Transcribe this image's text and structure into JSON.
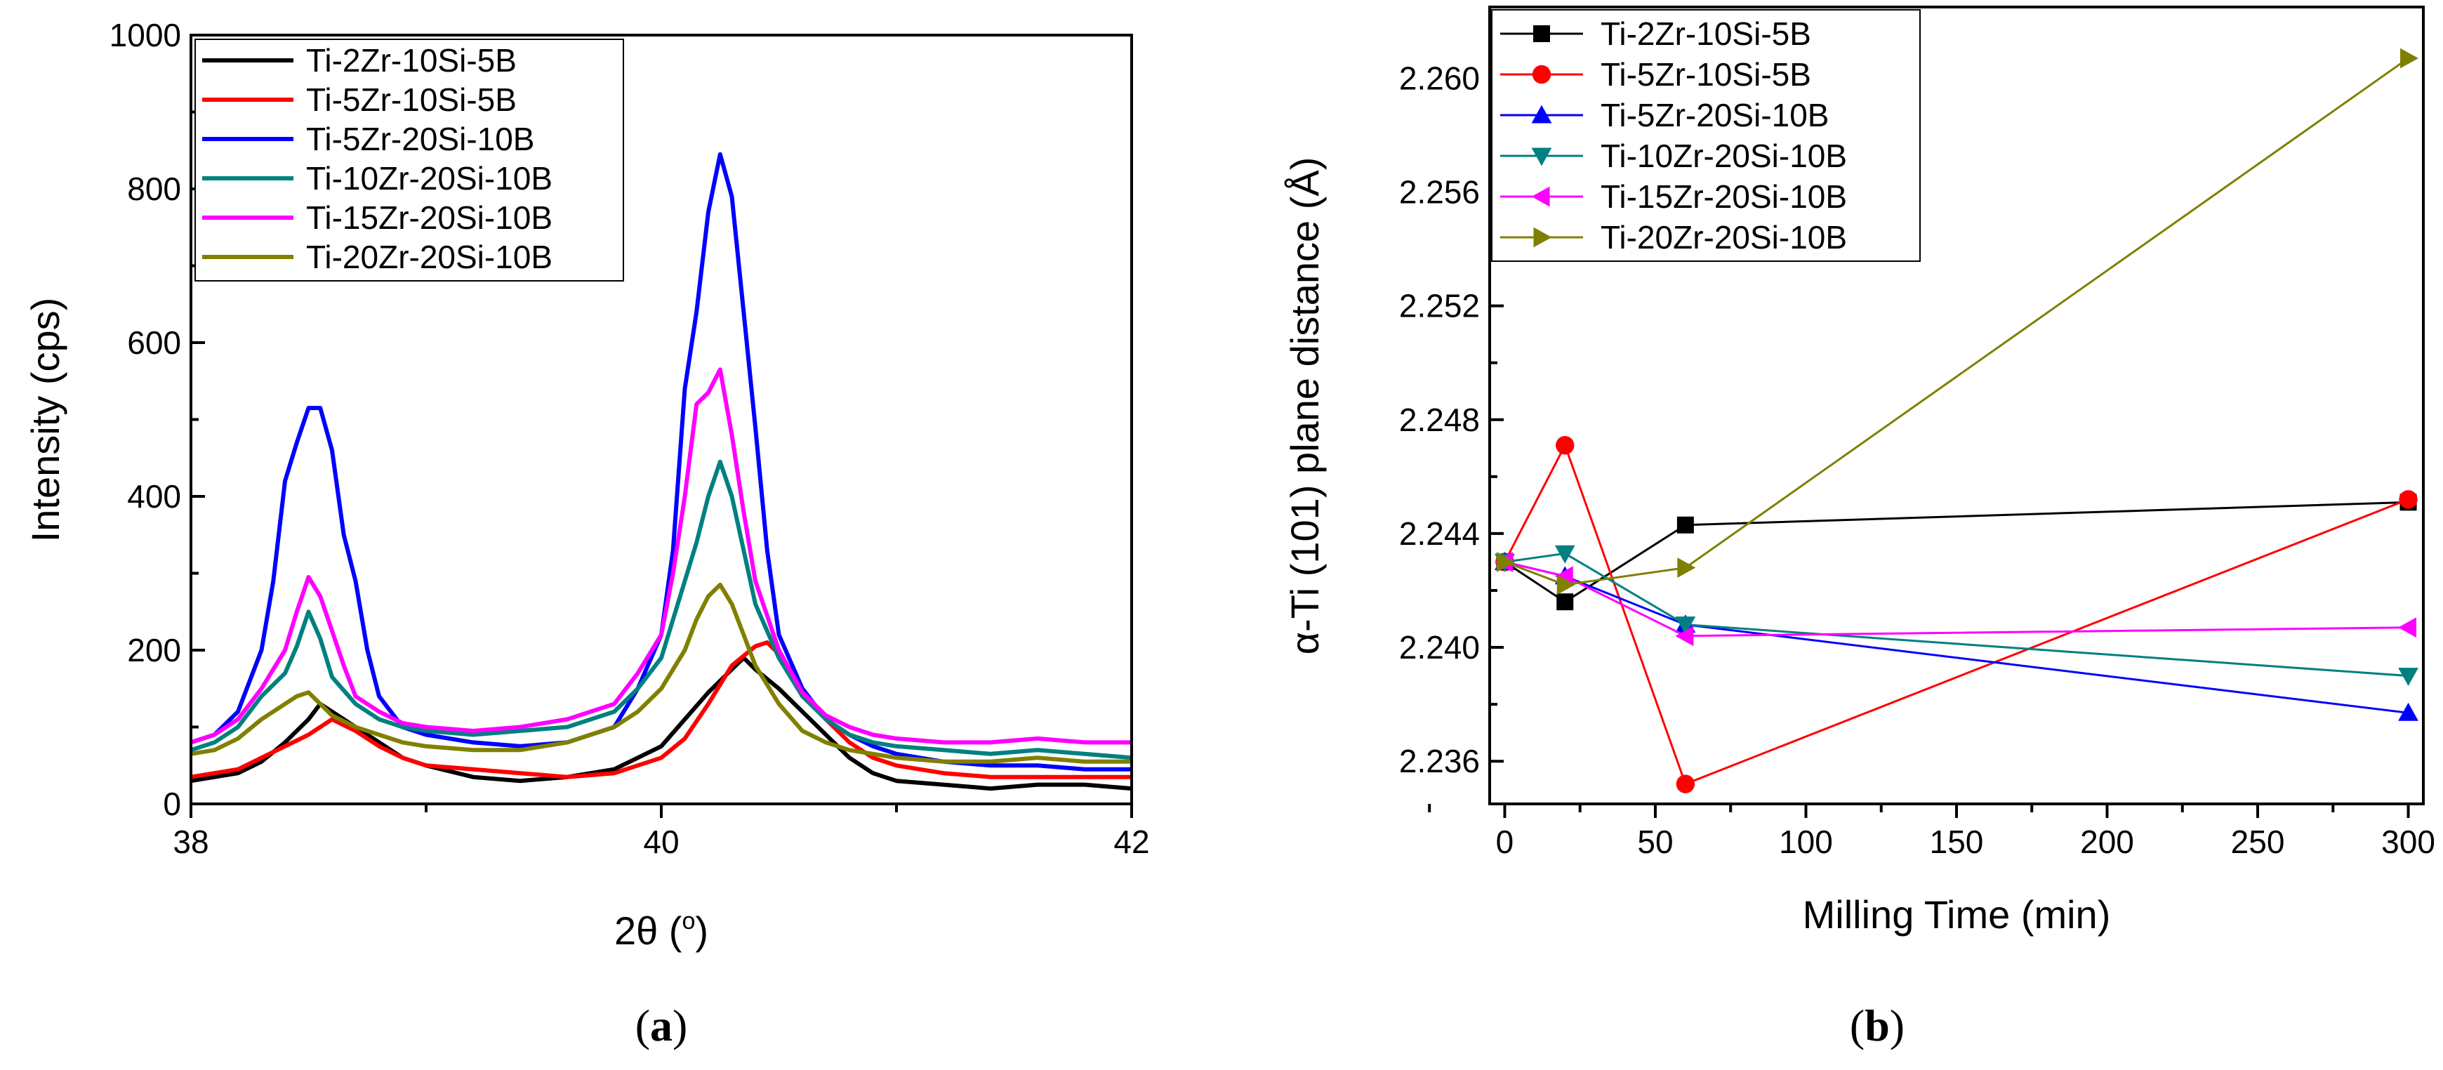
{
  "chart_data": [
    {
      "panel_label": {
        "open": "(",
        "letter": "a",
        "close": ")"
      },
      "type": "line",
      "xlabel_main": "2θ (",
      "xlabel_sup": "o",
      "xlabel_end": ")",
      "ylabel": "Intensity (cps)",
      "xlim": [
        38,
        42
      ],
      "ylim": [
        0,
        1000
      ],
      "xticks": [
        38,
        40,
        42
      ],
      "yticks": [
        0,
        200,
        400,
        600,
        800,
        1000
      ],
      "legend_position": "top-left",
      "series": [
        {
          "name": "Ti-2Zr-10Si-5B",
          "color": "#000000",
          "points": [
            [
              38.0,
              30
            ],
            [
              38.1,
              35
            ],
            [
              38.2,
              40
            ],
            [
              38.3,
              55
            ],
            [
              38.4,
              80
            ],
            [
              38.5,
              110
            ],
            [
              38.55,
              130
            ],
            [
              38.6,
              120
            ],
            [
              38.7,
              100
            ],
            [
              38.8,
              80
            ],
            [
              38.9,
              60
            ],
            [
              39.0,
              50
            ],
            [
              39.2,
              35
            ],
            [
              39.4,
              30
            ],
            [
              39.6,
              35
            ],
            [
              39.8,
              45
            ],
            [
              39.9,
              60
            ],
            [
              40.0,
              75
            ],
            [
              40.1,
              110
            ],
            [
              40.2,
              145
            ],
            [
              40.3,
              175
            ],
            [
              40.35,
              190
            ],
            [
              40.4,
              175
            ],
            [
              40.5,
              150
            ],
            [
              40.6,
              120
            ],
            [
              40.7,
              90
            ],
            [
              40.8,
              60
            ],
            [
              40.9,
              40
            ],
            [
              41.0,
              30
            ],
            [
              41.2,
              25
            ],
            [
              41.4,
              20
            ],
            [
              41.6,
              25
            ],
            [
              41.8,
              25
            ],
            [
              42.0,
              20
            ]
          ]
        },
        {
          "name": "Ti-5Zr-10Si-5B",
          "color": "#ff0000",
          "points": [
            [
              38.0,
              35
            ],
            [
              38.1,
              40
            ],
            [
              38.2,
              45
            ],
            [
              38.3,
              60
            ],
            [
              38.4,
              75
            ],
            [
              38.5,
              90
            ],
            [
              38.55,
              100
            ],
            [
              38.6,
              110
            ],
            [
              38.7,
              95
            ],
            [
              38.8,
              75
            ],
            [
              38.9,
              60
            ],
            [
              39.0,
              50
            ],
            [
              39.2,
              45
            ],
            [
              39.4,
              40
            ],
            [
              39.6,
              35
            ],
            [
              39.8,
              40
            ],
            [
              40.0,
              60
            ],
            [
              40.1,
              85
            ],
            [
              40.2,
              130
            ],
            [
              40.3,
              180
            ],
            [
              40.4,
              205
            ],
            [
              40.45,
              210
            ],
            [
              40.5,
              195
            ],
            [
              40.6,
              150
            ],
            [
              40.7,
              110
            ],
            [
              40.8,
              80
            ],
            [
              40.9,
              60
            ],
            [
              41.0,
              50
            ],
            [
              41.2,
              40
            ],
            [
              41.4,
              35
            ],
            [
              41.6,
              35
            ],
            [
              41.8,
              35
            ],
            [
              42.0,
              35
            ]
          ]
        },
        {
          "name": "Ti-5Zr-20Si-10B",
          "color": "#0000ff",
          "points": [
            [
              38.0,
              80
            ],
            [
              38.1,
              90
            ],
            [
              38.2,
              120
            ],
            [
              38.3,
              200
            ],
            [
              38.35,
              290
            ],
            [
              38.4,
              420
            ],
            [
              38.45,
              470
            ],
            [
              38.5,
              515
            ],
            [
              38.55,
              515
            ],
            [
              38.6,
              460
            ],
            [
              38.65,
              350
            ],
            [
              38.7,
              290
            ],
            [
              38.75,
              200
            ],
            [
              38.8,
              140
            ],
            [
              38.9,
              100
            ],
            [
              39.0,
              90
            ],
            [
              39.2,
              80
            ],
            [
              39.4,
              75
            ],
            [
              39.6,
              80
            ],
            [
              39.8,
              100
            ],
            [
              39.9,
              150
            ],
            [
              40.0,
              220
            ],
            [
              40.05,
              330
            ],
            [
              40.1,
              540
            ],
            [
              40.15,
              640
            ],
            [
              40.2,
              770
            ],
            [
              40.25,
              845
            ],
            [
              40.3,
              790
            ],
            [
              40.35,
              640
            ],
            [
              40.4,
              490
            ],
            [
              40.45,
              330
            ],
            [
              40.5,
              220
            ],
            [
              40.6,
              150
            ],
            [
              40.7,
              110
            ],
            [
              40.8,
              90
            ],
            [
              40.9,
              75
            ],
            [
              41.0,
              65
            ],
            [
              41.2,
              55
            ],
            [
              41.4,
              50
            ],
            [
              41.6,
              50
            ],
            [
              41.8,
              45
            ],
            [
              42.0,
              45
            ]
          ]
        },
        {
          "name": "Ti-10Zr-20Si-10B",
          "color": "#008080",
          "points": [
            [
              38.0,
              70
            ],
            [
              38.1,
              80
            ],
            [
              38.2,
              100
            ],
            [
              38.3,
              140
            ],
            [
              38.4,
              170
            ],
            [
              38.45,
              205
            ],
            [
              38.5,
              250
            ],
            [
              38.55,
              215
            ],
            [
              38.6,
              165
            ],
            [
              38.7,
              130
            ],
            [
              38.8,
              110
            ],
            [
              38.9,
              100
            ],
            [
              39.0,
              95
            ],
            [
              39.2,
              90
            ],
            [
              39.4,
              95
            ],
            [
              39.6,
              100
            ],
            [
              39.8,
              120
            ],
            [
              39.9,
              150
            ],
            [
              40.0,
              190
            ],
            [
              40.1,
              290
            ],
            [
              40.15,
              340
            ],
            [
              40.2,
              400
            ],
            [
              40.25,
              445
            ],
            [
              40.3,
              400
            ],
            [
              40.35,
              330
            ],
            [
              40.4,
              260
            ],
            [
              40.5,
              190
            ],
            [
              40.6,
              140
            ],
            [
              40.7,
              110
            ],
            [
              40.8,
              90
            ],
            [
              40.9,
              80
            ],
            [
              41.0,
              75
            ],
            [
              41.2,
              70
            ],
            [
              41.4,
              65
            ],
            [
              41.6,
              70
            ],
            [
              41.8,
              65
            ],
            [
              42.0,
              60
            ]
          ]
        },
        {
          "name": "Ti-15Zr-20Si-10B",
          "color": "#ff00ff",
          "points": [
            [
              38.0,
              80
            ],
            [
              38.1,
              90
            ],
            [
              38.2,
              110
            ],
            [
              38.3,
              150
            ],
            [
              38.4,
              200
            ],
            [
              38.45,
              250
            ],
            [
              38.5,
              295
            ],
            [
              38.55,
              270
            ],
            [
              38.6,
              225
            ],
            [
              38.65,
              180
            ],
            [
              38.7,
              140
            ],
            [
              38.8,
              120
            ],
            [
              38.9,
              105
            ],
            [
              39.0,
              100
            ],
            [
              39.2,
              95
            ],
            [
              39.4,
              100
            ],
            [
              39.6,
              110
            ],
            [
              39.8,
              130
            ],
            [
              39.9,
              170
            ],
            [
              40.0,
              220
            ],
            [
              40.05,
              300
            ],
            [
              40.1,
              400
            ],
            [
              40.15,
              520
            ],
            [
              40.2,
              535
            ],
            [
              40.25,
              565
            ],
            [
              40.3,
              480
            ],
            [
              40.35,
              380
            ],
            [
              40.4,
              290
            ],
            [
              40.5,
              200
            ],
            [
              40.6,
              145
            ],
            [
              40.7,
              115
            ],
            [
              40.8,
              100
            ],
            [
              40.9,
              90
            ],
            [
              41.0,
              85
            ],
            [
              41.2,
              80
            ],
            [
              41.4,
              80
            ],
            [
              41.6,
              85
            ],
            [
              41.8,
              80
            ],
            [
              42.0,
              80
            ]
          ]
        },
        {
          "name": "Ti-20Zr-20Si-10B",
          "color": "#808000",
          "points": [
            [
              38.0,
              65
            ],
            [
              38.1,
              70
            ],
            [
              38.2,
              85
            ],
            [
              38.3,
              110
            ],
            [
              38.4,
              130
            ],
            [
              38.45,
              140
            ],
            [
              38.5,
              145
            ],
            [
              38.55,
              130
            ],
            [
              38.6,
              115
            ],
            [
              38.7,
              100
            ],
            [
              38.8,
              90
            ],
            [
              38.9,
              80
            ],
            [
              39.0,
              75
            ],
            [
              39.2,
              70
            ],
            [
              39.4,
              70
            ],
            [
              39.6,
              80
            ],
            [
              39.8,
              100
            ],
            [
              39.9,
              120
            ],
            [
              40.0,
              150
            ],
            [
              40.1,
              200
            ],
            [
              40.15,
              240
            ],
            [
              40.2,
              270
            ],
            [
              40.25,
              285
            ],
            [
              40.3,
              260
            ],
            [
              40.35,
              220
            ],
            [
              40.4,
              180
            ],
            [
              40.5,
              130
            ],
            [
              40.6,
              95
            ],
            [
              40.7,
              80
            ],
            [
              40.8,
              70
            ],
            [
              40.9,
              65
            ],
            [
              41.0,
              60
            ],
            [
              41.2,
              55
            ],
            [
              41.4,
              55
            ],
            [
              41.6,
              60
            ],
            [
              41.8,
              55
            ],
            [
              42.0,
              55
            ]
          ]
        }
      ]
    },
    {
      "panel_label": {
        "open": "(",
        "letter": "b",
        "close": ")"
      },
      "type": "line",
      "xlabel": "Milling Time (min)",
      "ylabel": "α-Ti (101) plane distance (Å)",
      "xlim": [
        -5,
        305
      ],
      "ylim": [
        2.2345,
        2.2625
      ],
      "xticks": [
        0,
        50,
        100,
        150,
        200,
        250,
        300
      ],
      "yticks": [
        2.236,
        2.24,
        2.244,
        2.248,
        2.252,
        2.256,
        2.26
      ],
      "ytick_labels": [
        "2.236",
        "2.240",
        "2.244",
        "2.248",
        "2.252",
        "2.256",
        "2.260"
      ],
      "legend_position": "top-left",
      "series": [
        {
          "name": "Ti-2Zr-10Si-5B",
          "color": "#000000",
          "marker": "square",
          "x": [
            0,
            20,
            60,
            300
          ],
          "y": [
            2.243,
            2.2416,
            2.2443,
            2.2451
          ]
        },
        {
          "name": "Ti-5Zr-10Si-5B",
          "color": "#ff0000",
          "marker": "circle",
          "x": [
            0,
            20,
            60,
            300
          ],
          "y": [
            2.243,
            2.2471,
            2.2352,
            2.2452
          ]
        },
        {
          "name": "Ti-5Zr-20Si-10B",
          "color": "#0000ff",
          "marker": "triangle-up",
          "x": [
            0,
            20,
            60,
            300
          ],
          "y": [
            2.243,
            2.2425,
            2.2408,
            2.2377
          ]
        },
        {
          "name": "Ti-10Zr-20Si-10B",
          "color": "#008080",
          "marker": "triangle-down",
          "x": [
            0,
            20,
            60,
            300
          ],
          "y": [
            2.243,
            2.2433,
            2.2408,
            2.239
          ]
        },
        {
          "name": "Ti-15Zr-20Si-10B",
          "color": "#ff00ff",
          "marker": "triangle-left",
          "x": [
            0,
            20,
            60,
            300
          ],
          "y": [
            2.243,
            2.2425,
            2.2404,
            2.2407
          ]
        },
        {
          "name": "Ti-20Zr-20Si-10B",
          "color": "#808000",
          "marker": "triangle-right",
          "x": [
            0,
            20,
            60,
            300
          ],
          "y": [
            2.243,
            2.2422,
            2.2428,
            2.2607
          ]
        }
      ]
    }
  ]
}
